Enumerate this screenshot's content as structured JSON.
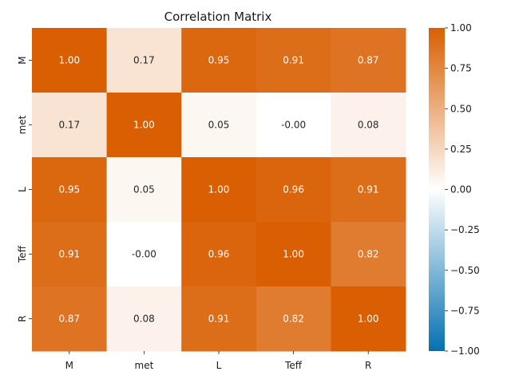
{
  "chart_data": {
    "type": "heatmap",
    "title": "Correlation Matrix",
    "x_categories": [
      "M",
      "met",
      "L",
      "Teff",
      "R"
    ],
    "y_categories": [
      "M",
      "met",
      "L",
      "Teff",
      "R"
    ],
    "values": [
      [
        1.0,
        0.17,
        0.95,
        0.91,
        0.87
      ],
      [
        0.17,
        1.0,
        0.05,
        -0.0,
        0.08
      ],
      [
        0.95,
        0.05,
        1.0,
        0.96,
        0.91
      ],
      [
        0.91,
        -0.0,
        0.96,
        1.0,
        0.82
      ],
      [
        0.87,
        0.08,
        0.91,
        0.82,
        1.0
      ]
    ],
    "cell_labels": [
      [
        "1.00",
        "0.17",
        "0.95",
        "0.91",
        "0.87"
      ],
      [
        "0.17",
        "1.00",
        "0.05",
        "-0.00",
        "0.08"
      ],
      [
        "0.95",
        "0.05",
        "1.00",
        "0.96",
        "0.91"
      ],
      [
        "0.91",
        "-0.00",
        "0.96",
        "1.00",
        "0.82"
      ],
      [
        "0.87",
        "0.08",
        "0.91",
        "0.82",
        "1.00"
      ]
    ],
    "colorbar": {
      "range": [
        -1.0,
        1.0
      ],
      "ticks": [
        1.0,
        0.75,
        0.5,
        0.25,
        0.0,
        -0.25,
        -0.5,
        -0.75,
        -1.0
      ],
      "tick_labels": [
        "1.00",
        "0.75",
        "0.50",
        "0.25",
        "0.00",
        "−0.25",
        "−0.50",
        "−0.75",
        "−1.00"
      ],
      "colors": {
        "negative": "#0570b0",
        "middle": "#ffffff",
        "positive": "#d95f02"
      }
    }
  }
}
